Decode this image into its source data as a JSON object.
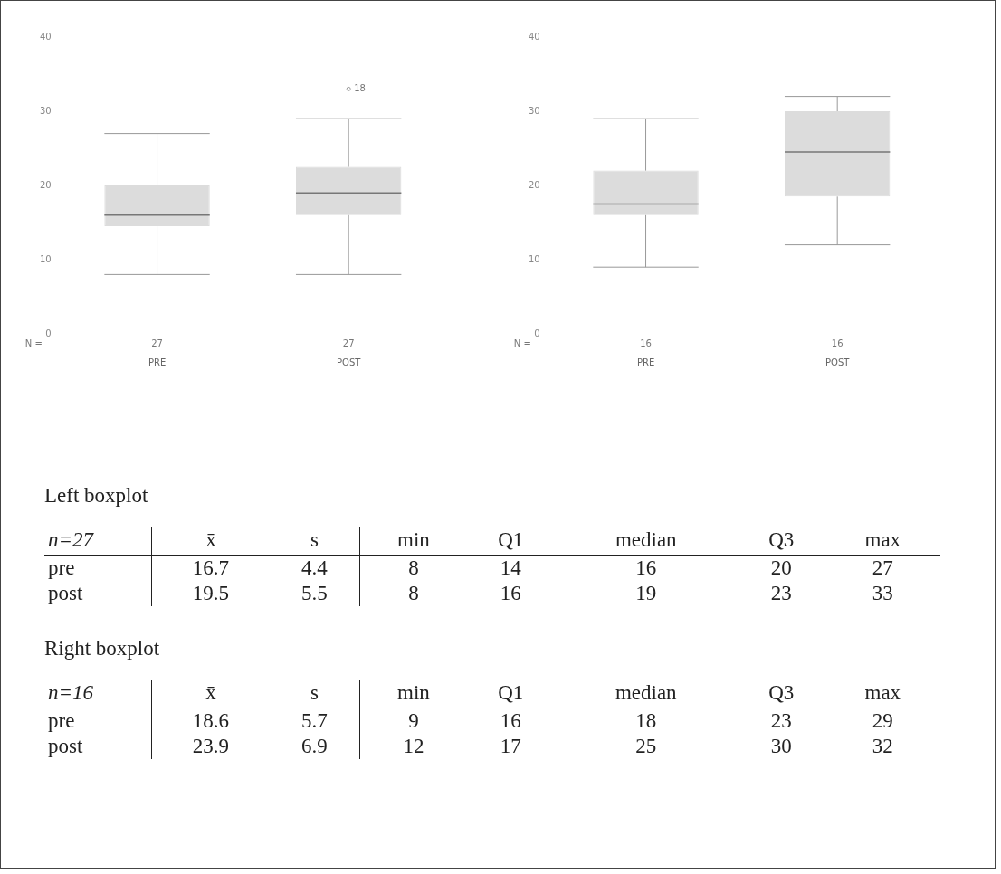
{
  "chart_data": [
    {
      "type": "box",
      "categories": [
        "PRE",
        "POST"
      ],
      "ylim": [
        0,
        40
      ],
      "yticks": [
        0,
        10,
        20,
        30,
        40
      ],
      "series": [
        {
          "color": "#dcdcdc",
          "boxes": [
            {
              "low": 8,
              "q1": 14.5,
              "median": 16,
              "q3": 20,
              "high": 27
            },
            {
              "low": 8,
              "q1": 16,
              "median": 19,
              "q3": 22.5,
              "high": 29,
              "outliers": [
                33
              ]
            }
          ]
        }
      ],
      "annotations": [
        "N =",
        "27",
        "27",
        "18",
        "Left boxplot",
        "n=27",
        "x̄",
        "s",
        "min",
        "Q1",
        "median",
        "Q3",
        "max",
        "pre",
        "16.7",
        "4.4",
        "8",
        "14",
        "16",
        "20",
        "27",
        "post",
        "19.5",
        "5.5",
        "8",
        "16",
        "19",
        "23",
        "33"
      ]
    },
    {
      "type": "box",
      "categories": [
        "PRE",
        "POST"
      ],
      "ylim": [
        0,
        40
      ],
      "yticks": [
        0,
        10,
        20,
        30,
        40
      ],
      "series": [
        {
          "color": "#dcdcdc",
          "boxes": [
            {
              "low": 9,
              "q1": 16,
              "median": 17.5,
              "q3": 22,
              "high": 29
            },
            {
              "low": 12,
              "q1": 18.5,
              "median": 24.5,
              "q3": 30,
              "high": 32
            }
          ]
        }
      ],
      "annotations": [
        "N =",
        "16",
        "16",
        "Right boxplot",
        "n=16",
        "x̄",
        "s",
        "min",
        "Q1",
        "median",
        "Q3",
        "max",
        "pre",
        "18.6",
        "5.7",
        "9",
        "16",
        "18",
        "23",
        "29",
        "post",
        "23.9",
        "6.9",
        "12",
        "17",
        "25",
        "30",
        "32"
      ]
    }
  ]
}
